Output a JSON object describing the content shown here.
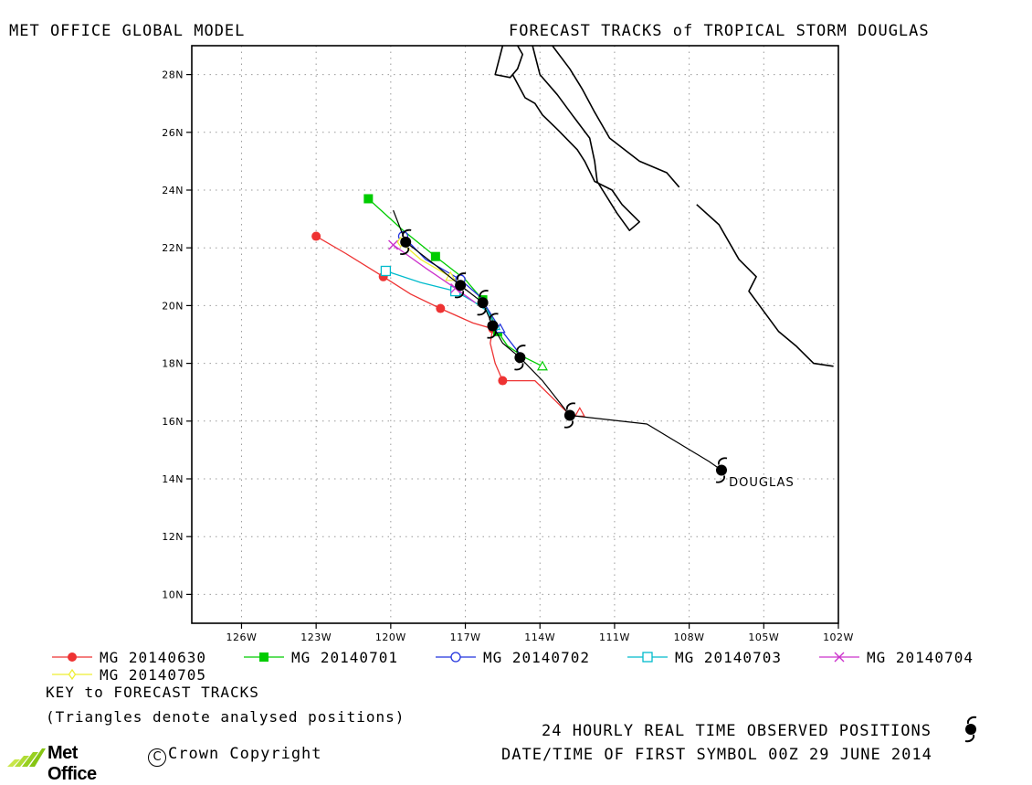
{
  "header": {
    "left_title": "MET OFFICE GLOBAL MODEL",
    "right_title": "FORECAST TRACKS of TROPICAL STORM DOUGLAS"
  },
  "chart_data": {
    "type": "map",
    "xlim": [
      -128,
      -102
    ],
    "ylim": [
      9,
      29
    ],
    "x_ticks": [
      {
        "value": -126,
        "label": "126W"
      },
      {
        "value": -123,
        "label": "123W"
      },
      {
        "value": -120,
        "label": "120W"
      },
      {
        "value": -117,
        "label": "117W"
      },
      {
        "value": -114,
        "label": "114W"
      },
      {
        "value": -111,
        "label": "111W"
      },
      {
        "value": -108,
        "label": "108W"
      },
      {
        "value": -105,
        "label": "105W"
      },
      {
        "value": -102,
        "label": "102W"
      }
    ],
    "y_ticks": [
      {
        "value": 10,
        "label": "10N"
      },
      {
        "value": 12,
        "label": "12N"
      },
      {
        "value": 14,
        "label": "14N"
      },
      {
        "value": 16,
        "label": "16N"
      },
      {
        "value": 18,
        "label": "18N"
      },
      {
        "value": 20,
        "label": "20N"
      },
      {
        "value": 22,
        "label": "22N"
      },
      {
        "value": 24,
        "label": "24N"
      },
      {
        "value": 26,
        "label": "26N"
      },
      {
        "value": 28,
        "label": "28N"
      }
    ],
    "grid": "dotted",
    "coastlines": [
      [
        [
          -115.1,
          28.0
        ],
        [
          -114.6,
          27.2
        ],
        [
          -114.2,
          27.0
        ],
        [
          -113.9,
          26.6
        ],
        [
          -113.3,
          26.1
        ],
        [
          -112.5,
          25.4
        ],
        [
          -112.2,
          25.0
        ],
        [
          -111.8,
          24.3
        ],
        [
          -111.1,
          24.0
        ],
        [
          -110.7,
          23.5
        ],
        [
          -110.0,
          22.9
        ],
        [
          -110.4,
          22.6
        ],
        [
          -110.9,
          23.2
        ],
        [
          -111.7,
          24.3
        ],
        [
          -111.8,
          25.0
        ],
        [
          -112.0,
          25.8
        ],
        [
          -112.7,
          26.6
        ],
        [
          -113.3,
          27.3
        ],
        [
          -114.0,
          28.0
        ],
        [
          -114.3,
          29.0
        ]
      ],
      [
        [
          -115.5,
          29.0
        ],
        [
          -115.8,
          28.0
        ],
        [
          -115.2,
          27.9
        ],
        [
          -114.9,
          28.2
        ],
        [
          -114.7,
          28.7
        ],
        [
          -114.9,
          29.0
        ]
      ],
      [
        [
          -113.5,
          29.0
        ],
        [
          -112.8,
          28.2
        ],
        [
          -112.3,
          27.5
        ],
        [
          -111.8,
          26.7
        ],
        [
          -111.2,
          25.8
        ],
        [
          -110.0,
          25.0
        ],
        [
          -108.9,
          24.6
        ],
        [
          -108.4,
          24.1
        ]
      ],
      [
        [
          -107.7,
          23.5
        ],
        [
          -106.8,
          22.8
        ],
        [
          -106.0,
          21.6
        ],
        [
          -105.3,
          21.0
        ],
        [
          -105.6,
          20.5
        ],
        [
          -105.0,
          19.8
        ],
        [
          -104.4,
          19.1
        ],
        [
          -103.7,
          18.6
        ],
        [
          -103.0,
          18.0
        ],
        [
          -102.2,
          17.9
        ]
      ]
    ],
    "series": [
      {
        "name": "MG 20140630",
        "color": "#ee3333",
        "marker": "filled-circle",
        "points": [
          [
            -123.0,
            22.4
          ],
          [
            -121.8,
            21.8
          ],
          [
            -120.3,
            21.0
          ],
          [
            -119.2,
            20.4
          ],
          [
            -118.0,
            19.9
          ],
          [
            -116.7,
            19.4
          ],
          [
            -115.9,
            19.2
          ],
          [
            -116.0,
            18.7
          ],
          [
            -115.8,
            18.0
          ],
          [
            -115.5,
            17.4
          ],
          [
            -114.2,
            17.4
          ],
          [
            -112.9,
            16.3
          ]
        ],
        "markers": [
          [
            -123.0,
            22.4
          ],
          [
            -120.3,
            21.0
          ],
          [
            -118.0,
            19.9
          ],
          [
            -115.9,
            19.2
          ],
          [
            -115.5,
            17.4
          ]
        ]
      },
      {
        "name": "MG 20140701",
        "color": "#00cc00",
        "marker": "filled-square",
        "points": [
          [
            -120.9,
            23.7
          ],
          [
            -119.5,
            22.6
          ],
          [
            -118.2,
            21.7
          ],
          [
            -117.0,
            20.9
          ],
          [
            -116.3,
            20.2
          ],
          [
            -115.9,
            19.5
          ],
          [
            -115.7,
            19.1
          ],
          [
            -115.3,
            18.6
          ],
          [
            -114.6,
            18.2
          ],
          [
            -113.9,
            17.9
          ]
        ],
        "markers": [
          [
            -120.9,
            23.7
          ],
          [
            -118.2,
            21.7
          ],
          [
            -116.3,
            20.2
          ],
          [
            -115.7,
            19.1
          ]
        ]
      },
      {
        "name": "MG 20140702",
        "color": "#2233dd",
        "marker": "open-circle",
        "points": [
          [
            -119.5,
            22.4
          ],
          [
            -118.6,
            21.6
          ],
          [
            -117.2,
            20.9
          ],
          [
            -116.4,
            20.3
          ],
          [
            -115.9,
            19.6
          ],
          [
            -115.6,
            19.2
          ],
          [
            -114.7,
            18.2
          ]
        ],
        "markers": [
          [
            -119.5,
            22.4
          ],
          [
            -117.2,
            20.9
          ]
        ]
      },
      {
        "name": "MG 20140703",
        "color": "#00bbcc",
        "marker": "open-square",
        "points": [
          [
            -120.2,
            21.2
          ],
          [
            -118.8,
            20.8
          ],
          [
            -117.4,
            20.5
          ],
          [
            -116.6,
            20.1
          ],
          [
            -116.1,
            19.8
          ],
          [
            -115.8,
            19.3
          ]
        ],
        "markers": [
          [
            -120.2,
            21.2
          ],
          [
            -117.4,
            20.5
          ]
        ]
      },
      {
        "name": "MG 20140704",
        "color": "#cc33cc",
        "marker": "x",
        "points": [
          [
            -119.9,
            22.1
          ],
          [
            -118.6,
            21.3
          ],
          [
            -117.4,
            20.6
          ],
          [
            -116.6,
            20.1
          ]
        ],
        "markers": [
          [
            -119.9,
            22.1
          ],
          [
            -117.4,
            20.6
          ]
        ]
      },
      {
        "name": "MG 20140705",
        "color": "#eeee33",
        "marker": "open-diamond",
        "points": [
          [
            -119.6,
            22.2
          ],
          [
            -118.8,
            21.6
          ],
          [
            -117.6,
            21.0
          ]
        ],
        "markers": [
          [
            -119.6,
            22.2
          ]
        ]
      }
    ],
    "observed_track": {
      "points": [
        [
          -119.9,
          23.3
        ],
        [
          -119.4,
          22.2
        ],
        [
          -118.2,
          21.4
        ],
        [
          -117.2,
          20.7
        ],
        [
          -116.3,
          20.1
        ],
        [
          -115.9,
          19.3
        ],
        [
          -115.5,
          18.7
        ],
        [
          -114.8,
          18.2
        ],
        [
          -113.9,
          17.4
        ],
        [
          -112.8,
          16.2
        ],
        [
          -109.7,
          15.9
        ],
        [
          -107.2,
          14.6
        ],
        [
          -106.7,
          14.3
        ]
      ],
      "symbols": [
        [
          -119.4,
          22.2
        ],
        [
          -117.2,
          20.7
        ],
        [
          -116.3,
          20.1
        ],
        [
          -115.9,
          19.3
        ],
        [
          -114.8,
          18.2
        ],
        [
          -112.8,
          16.2
        ],
        [
          -106.7,
          14.3
        ]
      ]
    },
    "analysed_positions": [
      {
        "series": "MG 20140630",
        "lon": -112.4,
        "lat": 16.3
      },
      {
        "series": "MG 20140701",
        "lon": -113.9,
        "lat": 17.9
      },
      {
        "series": "MG 20140702",
        "lon": -115.6,
        "lat": 19.2
      },
      {
        "series": "MG 20140703",
        "lon": -115.8,
        "lat": 19.3
      },
      {
        "series": "MG 20140705",
        "lon": -117.6,
        "lat": 21.0
      }
    ],
    "storm_label": {
      "text": "DOUGLAS",
      "lon": -106.4,
      "lat": 13.9
    }
  },
  "key": {
    "title": "KEY to FORECAST TRACKS",
    "note": "(Triangles denote analysed positions)"
  },
  "footer": {
    "observed_label": "24 HOURLY REAL TIME OBSERVED POSITIONS",
    "first_symbol_label": "DATE/TIME OF FIRST SYMBOL 00Z 29 JUNE 2014",
    "logo_text": "Met Office",
    "copyright_text": "Crown Copyright"
  }
}
